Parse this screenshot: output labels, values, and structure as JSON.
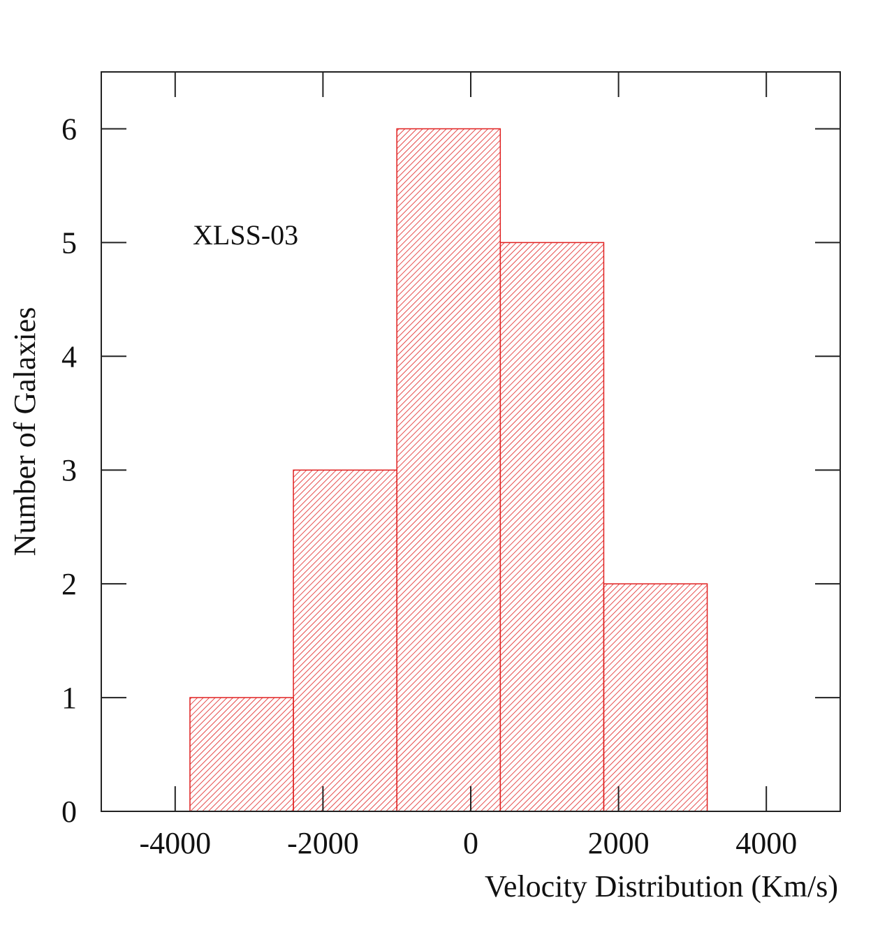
{
  "chart_data": {
    "type": "bar",
    "bin_edges": [
      -3800,
      -2400,
      -1000,
      400,
      1800,
      3200
    ],
    "values": [
      1,
      3,
      6,
      5,
      2
    ],
    "xlabel": "Velocity Distribution (Km/s)",
    "ylabel": "Number of Galaxies",
    "xlim": [
      -5000,
      5000
    ],
    "ylim": [
      0,
      6.5
    ],
    "xticks": [
      -4000,
      -2000,
      0,
      2000,
      4000
    ],
    "xtick_labels": [
      "-4000",
      "-2000",
      "0",
      "2000",
      "4000"
    ],
    "yticks": [
      0,
      1,
      2,
      3,
      4,
      5,
      6
    ],
    "ytick_labels": [
      "0",
      "1",
      "2",
      "3",
      "4",
      "5",
      "6"
    ],
    "annotations": [
      "XLSS-03"
    ],
    "grid": false,
    "fill": "hatched",
    "colors": {
      "bar": "#e02020",
      "axis": "#222222"
    }
  }
}
